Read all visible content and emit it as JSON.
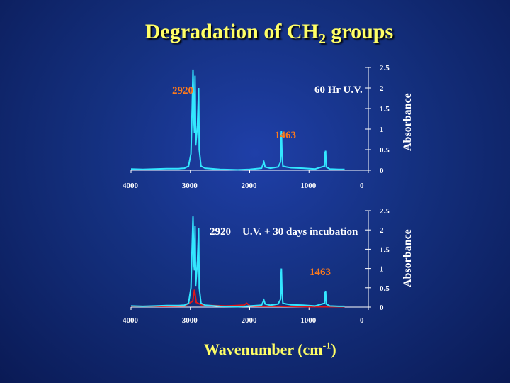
{
  "title": {
    "main": "Degradation of CH",
    "subscript": "2",
    "suffix": " groups"
  },
  "colors": {
    "title": "#ffff66",
    "line": "#33e6ff",
    "red": "#e01818",
    "orange": "#ff7a1a",
    "text": "#ffffff"
  },
  "chart_data": [
    {
      "type": "line",
      "title": "60 Hr U.V.",
      "ylabel": "Absorbance",
      "xlabel": "Wavenumber (cm-1)",
      "xlim": [
        4000,
        0
      ],
      "ylim": [
        0,
        2.5
      ],
      "x_ticks": [
        "4000",
        "3000",
        "2000",
        "1000",
        "0"
      ],
      "y_ticks": [
        "0",
        "0.5",
        "1",
        "1.5",
        "2",
        "2.5"
      ],
      "annotations": [
        {
          "text": "2920",
          "color": "orange"
        },
        {
          "text": "1463",
          "color": "orange"
        },
        {
          "text": "60 Hr U.V.",
          "color": "white"
        }
      ],
      "series": [
        {
          "name": "spectrum",
          "color": "cyan",
          "points": [
            [
              4000,
              0.03
            ],
            [
              3800,
              0.02
            ],
            [
              3600,
              0.03
            ],
            [
              3400,
              0.04
            ],
            [
              3200,
              0.04
            ],
            [
              3100,
              0.05
            ],
            [
              3030,
              0.1
            ],
            [
              2990,
              0.4
            ],
            [
              2970,
              1.5
            ],
            [
              2955,
              2.45
            ],
            [
              2940,
              1.2
            ],
            [
              2930,
              0.9
            ],
            [
              2920,
              2.3
            ],
            [
              2910,
              0.6
            ],
            [
              2880,
              1.1
            ],
            [
              2860,
              2.0
            ],
            [
              2850,
              0.5
            ],
            [
              2820,
              0.1
            ],
            [
              2750,
              0.05
            ],
            [
              2500,
              0.02
            ],
            [
              2200,
              0.01
            ],
            [
              2000,
              0.02
            ],
            [
              1800,
              0.05
            ],
            [
              1760,
              0.2
            ],
            [
              1740,
              0.08
            ],
            [
              1650,
              0.05
            ],
            [
              1520,
              0.08
            ],
            [
              1480,
              0.2
            ],
            [
              1470,
              0.8
            ],
            [
              1465,
              0.95
            ],
            [
              1455,
              0.4
            ],
            [
              1440,
              0.1
            ],
            [
              1380,
              0.08
            ],
            [
              1300,
              0.06
            ],
            [
              1100,
              0.05
            ],
            [
              900,
              0.03
            ],
            [
              740,
              0.1
            ],
            [
              730,
              0.42
            ],
            [
              720,
              0.47
            ],
            [
              710,
              0.08
            ],
            [
              650,
              0.03
            ],
            [
              500,
              0.02
            ],
            [
              400,
              0.02
            ]
          ]
        }
      ]
    },
    {
      "type": "line",
      "title": "U.V. + 30 days incubation",
      "ylabel": "Absorbance",
      "xlabel": "Wavenumber (cm-1)",
      "xlim": [
        4000,
        0
      ],
      "ylim": [
        0,
        2.5
      ],
      "x_ticks": [
        "4000",
        "3000",
        "2000",
        "1000",
        "0"
      ],
      "y_ticks": [
        "0",
        "0.5",
        "1",
        "1.5",
        "2",
        "2.5"
      ],
      "annotations": [
        {
          "text": "2920",
          "color": "white"
        },
        {
          "text": "1463",
          "color": "orange"
        },
        {
          "text": "U.V. + 30 days incubation",
          "color": "white"
        }
      ],
      "series": [
        {
          "name": "spectrum",
          "color": "cyan",
          "points": [
            [
              4000,
              0.03
            ],
            [
              3800,
              0.02
            ],
            [
              3600,
              0.03
            ],
            [
              3400,
              0.04
            ],
            [
              3200,
              0.04
            ],
            [
              3100,
              0.05
            ],
            [
              3030,
              0.1
            ],
            [
              2990,
              0.5
            ],
            [
              2970,
              1.6
            ],
            [
              2955,
              2.35
            ],
            [
              2940,
              1.1
            ],
            [
              2930,
              0.95
            ],
            [
              2920,
              2.1
            ],
            [
              2910,
              0.55
            ],
            [
              2880,
              1.2
            ],
            [
              2860,
              2.05
            ],
            [
              2850,
              0.5
            ],
            [
              2820,
              0.1
            ],
            [
              2750,
              0.05
            ],
            [
              2500,
              0.02
            ],
            [
              2200,
              0.01
            ],
            [
              2000,
              0.03
            ],
            [
              1800,
              0.05
            ],
            [
              1760,
              0.18
            ],
            [
              1740,
              0.08
            ],
            [
              1650,
              0.05
            ],
            [
              1520,
              0.08
            ],
            [
              1480,
              0.2
            ],
            [
              1470,
              0.85
            ],
            [
              1465,
              1.0
            ],
            [
              1455,
              0.4
            ],
            [
              1440,
              0.1
            ],
            [
              1380,
              0.08
            ],
            [
              1300,
              0.06
            ],
            [
              1100,
              0.05
            ],
            [
              900,
              0.03
            ],
            [
              740,
              0.1
            ],
            [
              730,
              0.38
            ],
            [
              720,
              0.42
            ],
            [
              710,
              0.08
            ],
            [
              650,
              0.03
            ],
            [
              500,
              0.02
            ],
            [
              400,
              0.02
            ]
          ]
        },
        {
          "name": "reference",
          "color": "red",
          "points": [
            [
              4000,
              0.02
            ],
            [
              3500,
              0.02
            ],
            [
              3100,
              0.03
            ],
            [
              2960,
              0.15
            ],
            [
              2930,
              0.45
            ],
            [
              2900,
              0.12
            ],
            [
              2800,
              0.05
            ],
            [
              2400,
              0.03
            ],
            [
              2100,
              0.05
            ],
            [
              2050,
              0.1
            ],
            [
              1990,
              0.03
            ],
            [
              1800,
              0.02
            ],
            [
              1500,
              0.02
            ],
            [
              1000,
              0.01
            ],
            [
              400,
              0.01
            ]
          ]
        }
      ]
    }
  ]
}
